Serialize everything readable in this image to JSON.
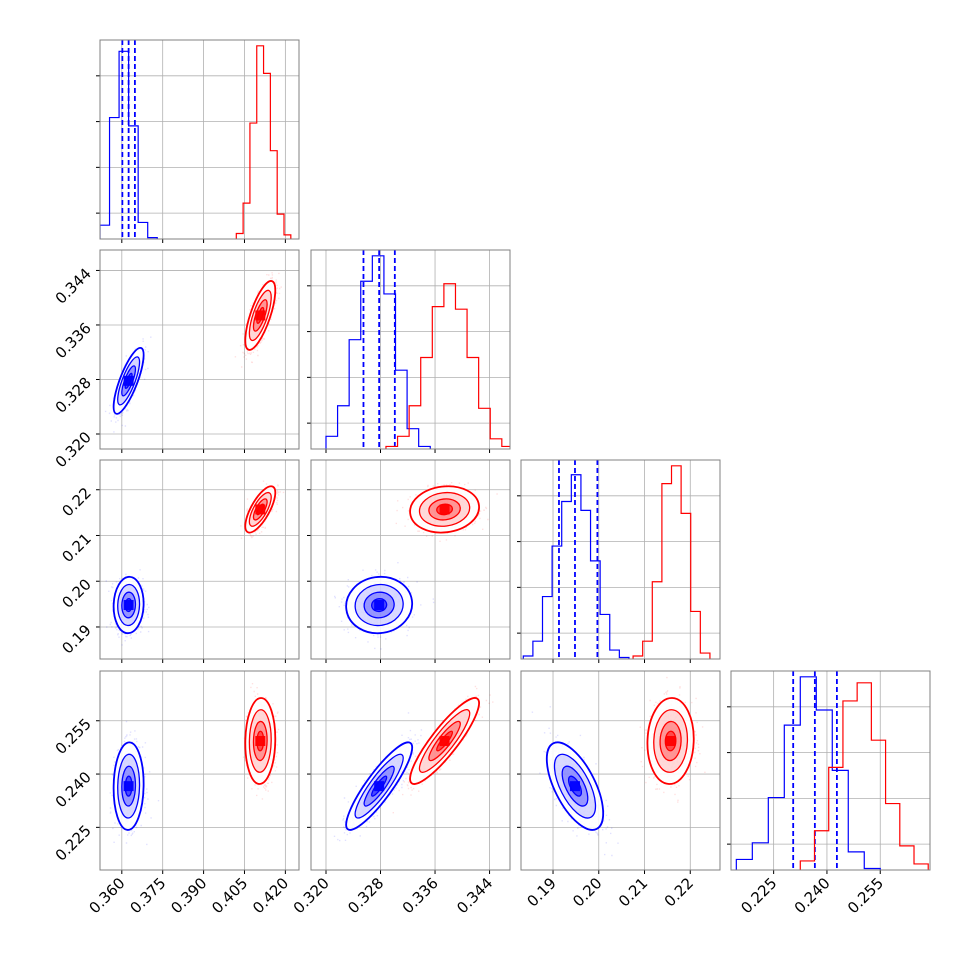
{
  "colors": {
    "blue": "#0000ff",
    "red": "#ff0000",
    "grid": "#b0b0b0",
    "frame": "#808080"
  },
  "chart_data": {
    "type": "corner",
    "grid": true,
    "params": [
      {
        "range": [
          0.352,
          0.425
        ],
        "ticks": [
          0.36,
          0.375,
          0.39,
          0.405,
          0.42
        ],
        "tick_labels": [
          "0.360",
          "0.375",
          "0.390",
          "0.405",
          "0.420"
        ]
      },
      {
        "range": [
          0.3178,
          0.347
        ],
        "ticks": [
          0.32,
          0.328,
          0.336,
          0.344
        ],
        "tick_labels": [
          "0.320",
          "0.328",
          "0.336",
          "0.344"
        ]
      },
      {
        "range": [
          0.183,
          0.2265
        ],
        "ticks": [
          0.19,
          0.2,
          0.21,
          0.22
        ],
        "tick_labels": [
          "0.19",
          "0.20",
          "0.21",
          "0.22"
        ]
      },
      {
        "range": [
          0.213,
          0.269
        ],
        "ticks": [
          0.225,
          0.24,
          0.255
        ],
        "tick_labels": [
          "0.225",
          "0.240",
          "0.255"
        ]
      }
    ],
    "series": [
      {
        "color": "blue",
        "quantiles": [
          [
            0.3602,
            0.3625,
            0.3648
          ],
          [
            0.3255,
            0.3278,
            0.3301
          ],
          [
            0.1913,
            0.1948,
            0.1997
          ],
          [
            0.2305,
            0.2366,
            0.2428
          ]
        ],
        "hist": [
          {
            "edges": [
              0.352,
              0.3555,
              0.359,
              0.3625,
              0.366,
              0.3695,
              0.373
            ],
            "counts": [
              0.5,
              4.4,
              6.8,
              4.1,
              0.6,
              0.05
            ]
          },
          {
            "edges": [
              0.32,
              0.3217,
              0.3234,
              0.3251,
              0.3268,
              0.3285,
              0.3302,
              0.3319,
              0.3336,
              0.3353
            ],
            "counts": [
              0.5,
              1.7,
              4.3,
              6.6,
              7.6,
              6.1,
              3.1,
              0.8,
              0.1
            ]
          },
          {
            "edges": [
              0.1835,
              0.1856,
              0.1877,
              0.1898,
              0.1919,
              0.194,
              0.1961,
              0.1982,
              0.2003,
              0.2024,
              0.2045,
              0.2066
            ],
            "counts": [
              0.1,
              0.6,
              2.1,
              3.8,
              5.3,
              6.2,
              5.0,
              3.3,
              1.5,
              0.3,
              0.05
            ]
          },
          {
            "edges": [
              0.2145,
              0.219,
              0.2235,
              0.228,
              0.2325,
              0.237,
              0.2415,
              0.246,
              0.2505,
              0.255
            ],
            "counts": [
              0.35,
              0.9,
              2.4,
              4.8,
              6.4,
              5.3,
              3.3,
              0.6,
              0.05
            ]
          }
        ],
        "scatter": [
          {
            "mean": [
              0.3625,
              0.3278
            ],
            "sd": [
              0.0025,
              0.0022
            ],
            "rho": 0.78
          },
          {
            "mean": [
              0.3625,
              0.1948
            ],
            "sd": [
              0.0025,
              0.0028
            ],
            "rho": 0.05
          },
          {
            "mean": [
              0.3625,
              0.2366
            ],
            "sd": [
              0.0025,
              0.0056
            ],
            "rho": 0.05
          },
          {
            "mean": [
              0.3278,
              0.1948
            ],
            "sd": [
              0.0022,
              0.0028
            ],
            "rho": 0.05
          },
          {
            "mean": [
              0.3278,
              0.2366
            ],
            "sd": [
              0.0022,
              0.0056
            ],
            "rho": 0.88
          },
          {
            "mean": [
              0.1948,
              0.2366
            ],
            "sd": [
              0.0028,
              0.0056
            ],
            "rho": -0.62
          }
        ]
      },
      {
        "color": "red",
        "quantiles": [],
        "hist": [
          {
            "edges": [
              0.402,
              0.4045,
              0.407,
              0.4095,
              0.412,
              0.4145,
              0.417,
              0.4195,
              0.422
            ],
            "counts": [
              0.2,
              1.3,
              4.2,
              7.0,
              6.0,
              3.2,
              0.9,
              0.15
            ]
          },
          {
            "edges": [
              0.3288,
              0.3305,
              0.3322,
              0.3339,
              0.3356,
              0.3373,
              0.339,
              0.3407,
              0.3424,
              0.3441,
              0.3458,
              0.3475
            ],
            "counts": [
              0.1,
              0.5,
              1.7,
              3.6,
              5.6,
              6.5,
              5.5,
              3.6,
              1.6,
              0.4,
              0.1
            ]
          },
          {
            "edges": [
              0.2075,
              0.2096,
              0.2117,
              0.2138,
              0.2159,
              0.218,
              0.2201,
              0.2222,
              0.2243
            ],
            "counts": [
              0.1,
              0.6,
              2.6,
              5.9,
              6.5,
              4.9,
              1.6,
              0.2
            ]
          },
          {
            "edges": [
              0.2325,
              0.2365,
              0.2405,
              0.2445,
              0.2485,
              0.2525,
              0.2565,
              0.2605,
              0.2645,
              0.2685
            ],
            "counts": [
              0.3,
              1.3,
              3.4,
              5.6,
              6.2,
              4.3,
              2.2,
              0.8,
              0.2
            ]
          }
        ],
        "scatter": [
          {
            "mean": [
              0.4108,
              0.3374
            ],
            "sd": [
              0.0025,
              0.0023
            ],
            "rho": 0.72
          },
          {
            "mean": [
              0.4108,
              0.2157
            ],
            "sd": [
              0.0025,
              0.0023
            ],
            "rho": 0.72
          },
          {
            "mean": [
              0.4108,
              0.2493
            ],
            "sd": [
              0.0025,
              0.0055
            ],
            "rho": 0.05
          },
          {
            "mean": [
              0.3374,
              0.2157
            ],
            "sd": [
              0.0023,
              0.0023
            ],
            "rho": 0.1
          },
          {
            "mean": [
              0.3374,
              0.2493
            ],
            "sd": [
              0.0023,
              0.0055
            ],
            "rho": 0.88
          },
          {
            "mean": [
              0.2157,
              0.2493
            ],
            "sd": [
              0.0023,
              0.0055
            ],
            "rho": 0.05
          }
        ]
      }
    ]
  }
}
